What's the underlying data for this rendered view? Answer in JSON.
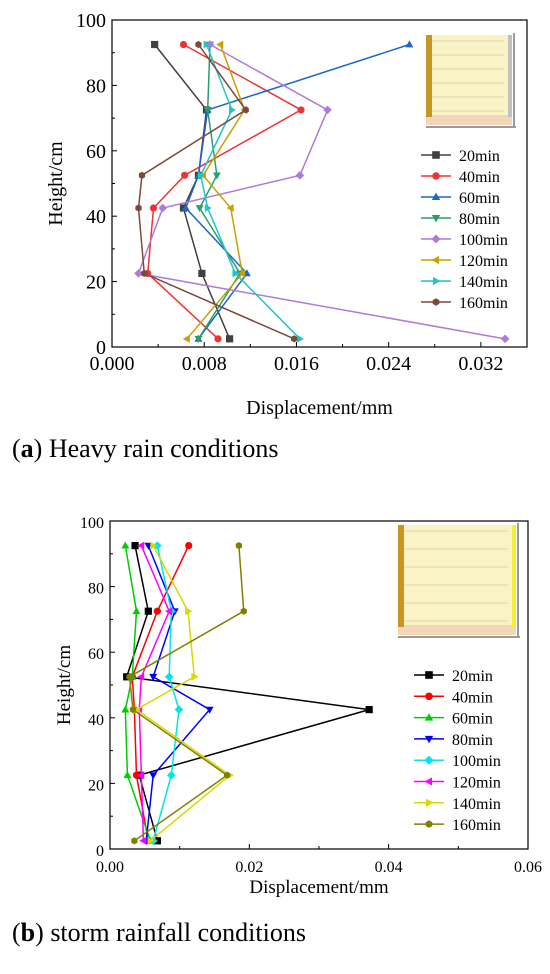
{
  "chart_data": [
    {
      "type": "line",
      "caption_letter": "a",
      "caption_text": "Heavy rain conditions",
      "xlabel": "Displacement/mm",
      "ylabel": "Height/cm",
      "xlim": [
        0,
        0.036
      ],
      "ylim": [
        0,
        100
      ],
      "xticks": [
        0.0,
        0.008,
        0.016,
        0.024,
        0.032
      ],
      "xtick_labels": [
        "0.000",
        "0.008",
        "0.016",
        "0.024",
        "0.032"
      ],
      "yticks": [
        0,
        20,
        40,
        60,
        80,
        100
      ],
      "ytick_labels": [
        "0",
        "20",
        "40",
        "60",
        "80",
        "100"
      ],
      "legend_position": "right",
      "heights": [
        2.5,
        22.5,
        42.5,
        52.5,
        72.5,
        92.5
      ],
      "series": [
        {
          "name": "20min",
          "color": "#404040",
          "marker": "square",
          "x": [
            0.0102,
            0.0078,
            0.0062,
            0.0075,
            0.0082,
            0.0037
          ]
        },
        {
          "name": "40min",
          "color": "#ee3333",
          "marker": "circle",
          "x": [
            0.0092,
            0.0031,
            0.0036,
            0.0063,
            0.0164,
            0.0062
          ]
        },
        {
          "name": "60min",
          "color": "#1f67c4",
          "marker": "triangle-up",
          "x": [
            0.0075,
            0.0117,
            0.0064,
            0.0075,
            0.0083,
            0.0258
          ]
        },
        {
          "name": "80min",
          "color": "#2a9e6a",
          "marker": "triangle-down",
          "x": [
            0.0075,
            0.0111,
            0.0076,
            0.0091,
            0.0083,
            0.0085
          ]
        },
        {
          "name": "100min",
          "color": "#b07ad8",
          "marker": "diamond",
          "x": [
            0.0341,
            0.0023,
            0.0044,
            0.0163,
            0.0187,
            0.0085
          ]
        },
        {
          "name": "120min",
          "color": "#c9a000",
          "marker": "triangle-left",
          "x": [
            0.0065,
            0.0113,
            0.0103,
            0.0079,
            0.0115,
            0.0094
          ]
        },
        {
          "name": "140min",
          "color": "#22c4c8",
          "marker": "triangle-right",
          "x": [
            0.0163,
            0.0107,
            0.0083,
            0.0077,
            0.0104,
            0.0082
          ]
        },
        {
          "name": "160min",
          "color": "#7a4a3a",
          "marker": "hexagon",
          "x": [
            0.0158,
            0.0028,
            0.0023,
            0.0026,
            0.0116,
            0.0075
          ]
        }
      ]
    },
    {
      "type": "line",
      "caption_letter": "b",
      "caption_text": "storm rainfall conditions",
      "xlabel": "Displacement/mm",
      "ylabel": "Height/cm",
      "xlim": [
        0,
        0.06
      ],
      "ylim": [
        0,
        100
      ],
      "xticks": [
        0.0,
        0.02,
        0.04,
        0.06
      ],
      "xtick_labels": [
        "0.00",
        "0.02",
        "0.04",
        "0.06"
      ],
      "yticks": [
        0,
        20,
        40,
        60,
        80,
        100
      ],
      "ytick_labels": [
        "0",
        "20",
        "40",
        "60",
        "80",
        "100"
      ],
      "legend_position": "right",
      "heights": [
        2.5,
        22.5,
        42.5,
        52.5,
        72.5,
        92.5
      ],
      "series": [
        {
          "name": "20min",
          "color": "#000000",
          "marker": "square",
          "x": [
            0.0068,
            0.0042,
            0.0372,
            0.0024,
            0.0055,
            0.0036
          ]
        },
        {
          "name": "40min",
          "color": "#ff0000",
          "marker": "circle",
          "x": [
            0.0055,
            0.0038,
            0.0035,
            0.0032,
            0.0068,
            0.0113
          ]
        },
        {
          "name": "60min",
          "color": "#00cc00",
          "marker": "triangle-up",
          "x": [
            0.0058,
            0.0025,
            0.0022,
            0.0032,
            0.0038,
            0.0022
          ]
        },
        {
          "name": "80min",
          "color": "#0000ff",
          "marker": "triangle-down",
          "x": [
            0.0052,
            0.0062,
            0.0143,
            0.0062,
            0.0093,
            0.0055
          ]
        },
        {
          "name": "100min",
          "color": "#00e5ee",
          "marker": "diamond",
          "x": [
            0.0062,
            0.0088,
            0.0099,
            0.0085,
            0.0088,
            0.0068
          ]
        },
        {
          "name": "120min",
          "color": "#ff00ff",
          "marker": "triangle-left",
          "x": [
            0.0048,
            0.0045,
            0.0042,
            0.0045,
            0.0085,
            0.0045
          ]
        },
        {
          "name": "140min",
          "color": "#d8d800",
          "marker": "triangle-right",
          "x": [
            0.0058,
            0.0172,
            0.0038,
            0.0121,
            0.0112,
            0.0062
          ]
        },
        {
          "name": "160min",
          "color": "#808000",
          "marker": "hexagon",
          "x": [
            0.0035,
            0.0168,
            0.0033,
            0.0028,
            0.0192,
            0.0185
          ]
        }
      ]
    }
  ]
}
